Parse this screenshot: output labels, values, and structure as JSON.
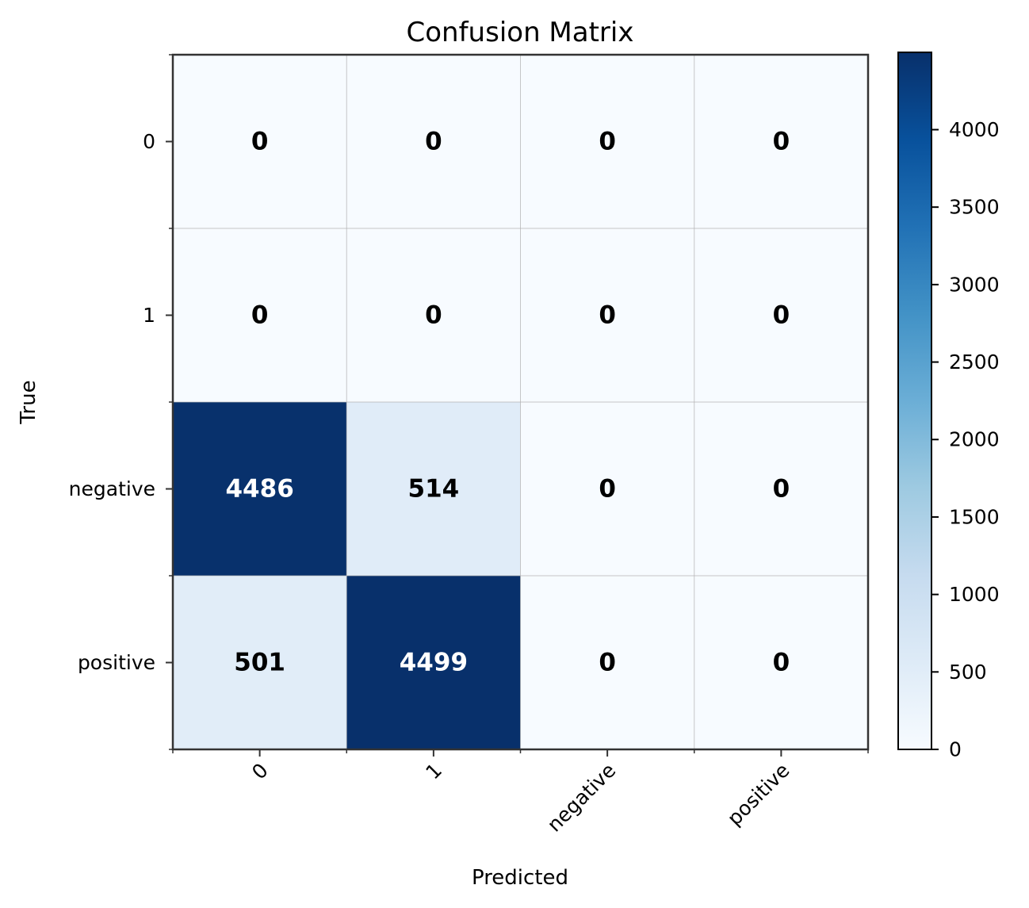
{
  "chart_data": {
    "type": "heatmap",
    "title": "Confusion Matrix",
    "xlabel": "Predicted",
    "ylabel": "True",
    "x_categories": [
      "0",
      "1",
      "negative",
      "positive"
    ],
    "y_categories": [
      "0",
      "1",
      "negative",
      "positive"
    ],
    "values": [
      [
        0,
        0,
        0,
        0
      ],
      [
        0,
        0,
        0,
        0
      ],
      [
        4486,
        514,
        0,
        0
      ],
      [
        501,
        4499,
        0,
        0
      ]
    ],
    "colormap": "Blues",
    "colorbar": {
      "range": [
        0,
        4499
      ],
      "ticks": [
        0,
        500,
        1000,
        1500,
        2000,
        2500,
        3000,
        3500,
        4000
      ]
    },
    "grid": true
  }
}
